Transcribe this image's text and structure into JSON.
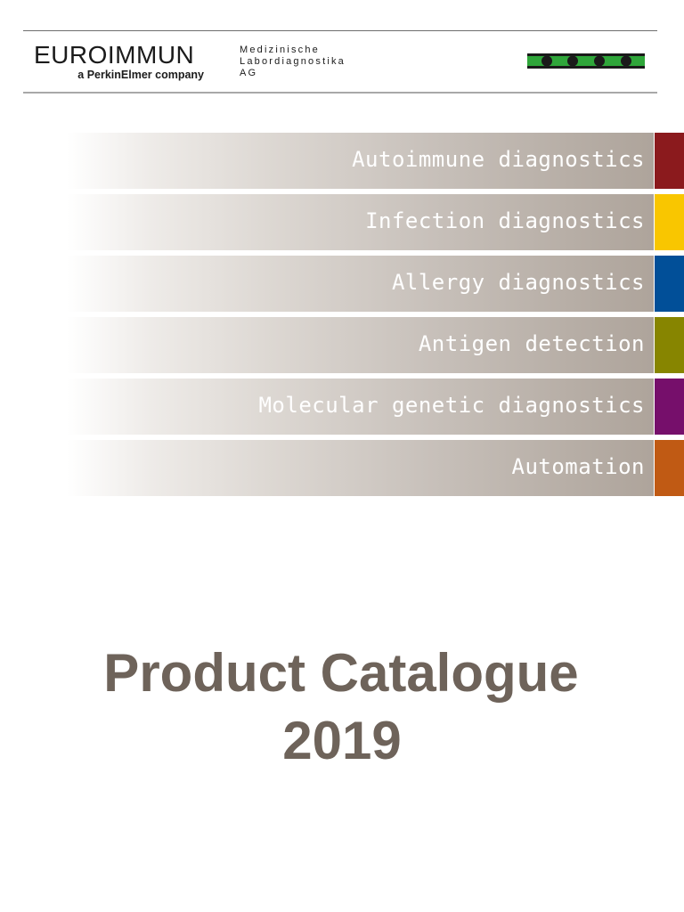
{
  "header": {
    "brand_name": "EUROIMMUN",
    "brand_sub": "a PerkinElmer company",
    "company_line1": "Medizinische",
    "company_line2": "Labordiagnostika",
    "company_line3": "AG",
    "logo_icon": "euroimmun-green-bar-dots-icon",
    "logo_colors": {
      "bar": "#2fa63a",
      "dots": "#1a1a1a"
    }
  },
  "categories": [
    {
      "label": "Autoimmune diagnostics",
      "color": "#8b1a1d"
    },
    {
      "label": "Infection diagnostics",
      "color": "#f9c600"
    },
    {
      "label": "Allergy diagnostics",
      "color": "#014f98"
    },
    {
      "label": "Antigen detection",
      "color": "#878500"
    },
    {
      "label": "Molecular genetic diagnostics",
      "color": "#760f6b"
    },
    {
      "label": "Automation",
      "color": "#c05a14"
    }
  ],
  "title": {
    "line1": "Product Catalogue",
    "line2": "2019",
    "color": "#6e635a"
  }
}
